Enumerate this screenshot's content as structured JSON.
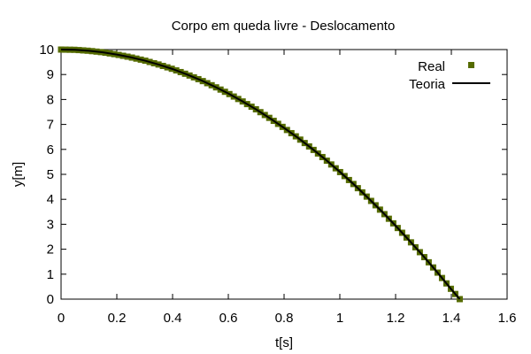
{
  "chart_data": {
    "type": "scatter",
    "title": "Corpo em queda livre - Deslocamento",
    "xlabel": "t[s]",
    "ylabel": "y[m]",
    "xlim": [
      0,
      1.6
    ],
    "ylim": [
      0,
      10
    ],
    "xticks": [
      0,
      0.2,
      0.4,
      0.6,
      0.8,
      1,
      1.2,
      1.4,
      1.6
    ],
    "xtick_labels": [
      "0",
      "0.2",
      "0.4",
      "0.6",
      "0.8",
      "1",
      "1.2",
      "1.4",
      "1.6"
    ],
    "yticks": [
      0,
      1,
      2,
      3,
      4,
      5,
      6,
      7,
      8,
      9,
      10
    ],
    "ytick_labels": [
      "0",
      "1",
      "2",
      "3",
      "4",
      "5",
      "6",
      "7",
      "8",
      "9",
      "10"
    ],
    "grid": false,
    "legend_position": "top-right",
    "series": [
      {
        "name": "Real",
        "kind": "points",
        "color": "#556b00",
        "x": [
          0,
          0.05,
          0.1,
          0.15,
          0.2,
          0.25,
          0.3,
          0.35,
          0.4,
          0.45,
          0.5,
          0.55,
          0.6,
          0.65,
          0.7,
          0.75,
          0.8,
          0.85,
          0.9,
          0.95,
          1,
          1.05,
          1.1,
          1.15,
          1.2,
          1.25,
          1.3,
          1.35,
          1.4,
          1.43
        ],
        "y": [
          10,
          9.99,
          9.95,
          9.89,
          9.8,
          9.69,
          9.56,
          9.4,
          9.22,
          9.01,
          8.78,
          8.52,
          8.24,
          7.93,
          7.6,
          7.24,
          6.86,
          6.46,
          6.03,
          5.58,
          5.1,
          4.6,
          4.07,
          3.52,
          2.94,
          2.34,
          1.72,
          1.07,
          0.39,
          0
        ]
      },
      {
        "name": "Teoria",
        "kind": "line",
        "color": "#000000",
        "x": [
          0,
          0.05,
          0.1,
          0.15,
          0.2,
          0.25,
          0.3,
          0.35,
          0.4,
          0.45,
          0.5,
          0.55,
          0.6,
          0.65,
          0.7,
          0.75,
          0.8,
          0.85,
          0.9,
          0.95,
          1,
          1.05,
          1.1,
          1.15,
          1.2,
          1.25,
          1.3,
          1.35,
          1.4,
          1.43
        ],
        "y": [
          10,
          9.99,
          9.95,
          9.89,
          9.8,
          9.69,
          9.56,
          9.4,
          9.22,
          9.01,
          8.78,
          8.52,
          8.24,
          7.93,
          7.6,
          7.24,
          6.86,
          6.46,
          6.03,
          5.58,
          5.1,
          4.6,
          4.07,
          3.52,
          2.94,
          2.34,
          1.72,
          1.07,
          0.39,
          0
        ]
      }
    ]
  }
}
